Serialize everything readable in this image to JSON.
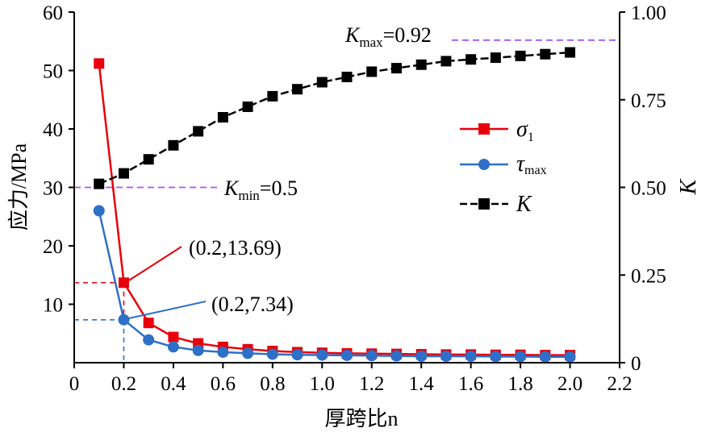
{
  "chart_data": {
    "type": "line",
    "xlabel": "厚跨比n",
    "ylabel_left": "应力/MPa",
    "ylabel_right": "K",
    "xlim": [
      0,
      2.2
    ],
    "ylim_left": [
      0,
      60
    ],
    "ylim_right": [
      0,
      1.0
    ],
    "x_ticks": [
      "0",
      "0.2",
      "0.4",
      "0.6",
      "0.8",
      "1.0",
      "1.2",
      "1.4",
      "1.6",
      "1.8",
      "2.0",
      "2.2"
    ],
    "y_left_ticks": [
      "10",
      "20",
      "30",
      "40",
      "50",
      "60"
    ],
    "y_right_ticks": [
      "0",
      "0.25",
      "0.50",
      "0.75",
      "1.00"
    ],
    "grid": false,
    "legend_position": "right-middle",
    "x": [
      0.1,
      0.2,
      0.3,
      0.4,
      0.5,
      0.6,
      0.7,
      0.8,
      0.9,
      1.0,
      1.1,
      1.2,
      1.3,
      1.4,
      1.5,
      1.6,
      1.7,
      1.8,
      1.9,
      2.0
    ],
    "series": [
      {
        "name": "σ1",
        "axis": "left",
        "color": "#e8000b",
        "marker": "square",
        "values": [
          51.2,
          13.69,
          6.8,
          4.4,
          3.3,
          2.7,
          2.3,
          2.0,
          1.8,
          1.7,
          1.6,
          1.55,
          1.5,
          1.45,
          1.4,
          1.4,
          1.35,
          1.35,
          1.3,
          1.3
        ]
      },
      {
        "name": "τmax",
        "axis": "left",
        "color": "#2e6fc7",
        "marker": "circle",
        "values": [
          26.0,
          7.34,
          3.9,
          2.7,
          2.1,
          1.8,
          1.6,
          1.45,
          1.35,
          1.3,
          1.25,
          1.2,
          1.15,
          1.1,
          1.1,
          1.1,
          1.05,
          1.05,
          1.0,
          1.0
        ]
      },
      {
        "name": "K",
        "axis": "right",
        "color": "#000000",
        "marker": "square",
        "values": [
          0.51,
          0.54,
          0.58,
          0.62,
          0.66,
          0.7,
          0.73,
          0.76,
          0.78,
          0.8,
          0.815,
          0.83,
          0.84,
          0.85,
          0.86,
          0.865,
          0.87,
          0.875,
          0.88,
          0.885
        ]
      }
    ],
    "annotations": {
      "kmax_text": "=0.92",
      "kmin_text": "=0.5",
      "kmax_value": 0.92,
      "kmin_value": 0.5,
      "point_sigma_label": "(0.2,13.69)",
      "point_tau_label": "(0.2,7.34)",
      "point_x": 0.2,
      "point_sigma_value": 13.69,
      "point_tau_value": 7.34,
      "k_symbol": "K",
      "k_max_sub": "max",
      "k_min_sub": "min",
      "sigma_symbol": "σ",
      "sigma_sub": "1",
      "tau_symbol": "τ",
      "tau_sub": "max"
    },
    "colors": {
      "guide_purple": "#a855f7",
      "sigma_red": "#e8000b",
      "tau_blue": "#2e6fc7"
    }
  }
}
